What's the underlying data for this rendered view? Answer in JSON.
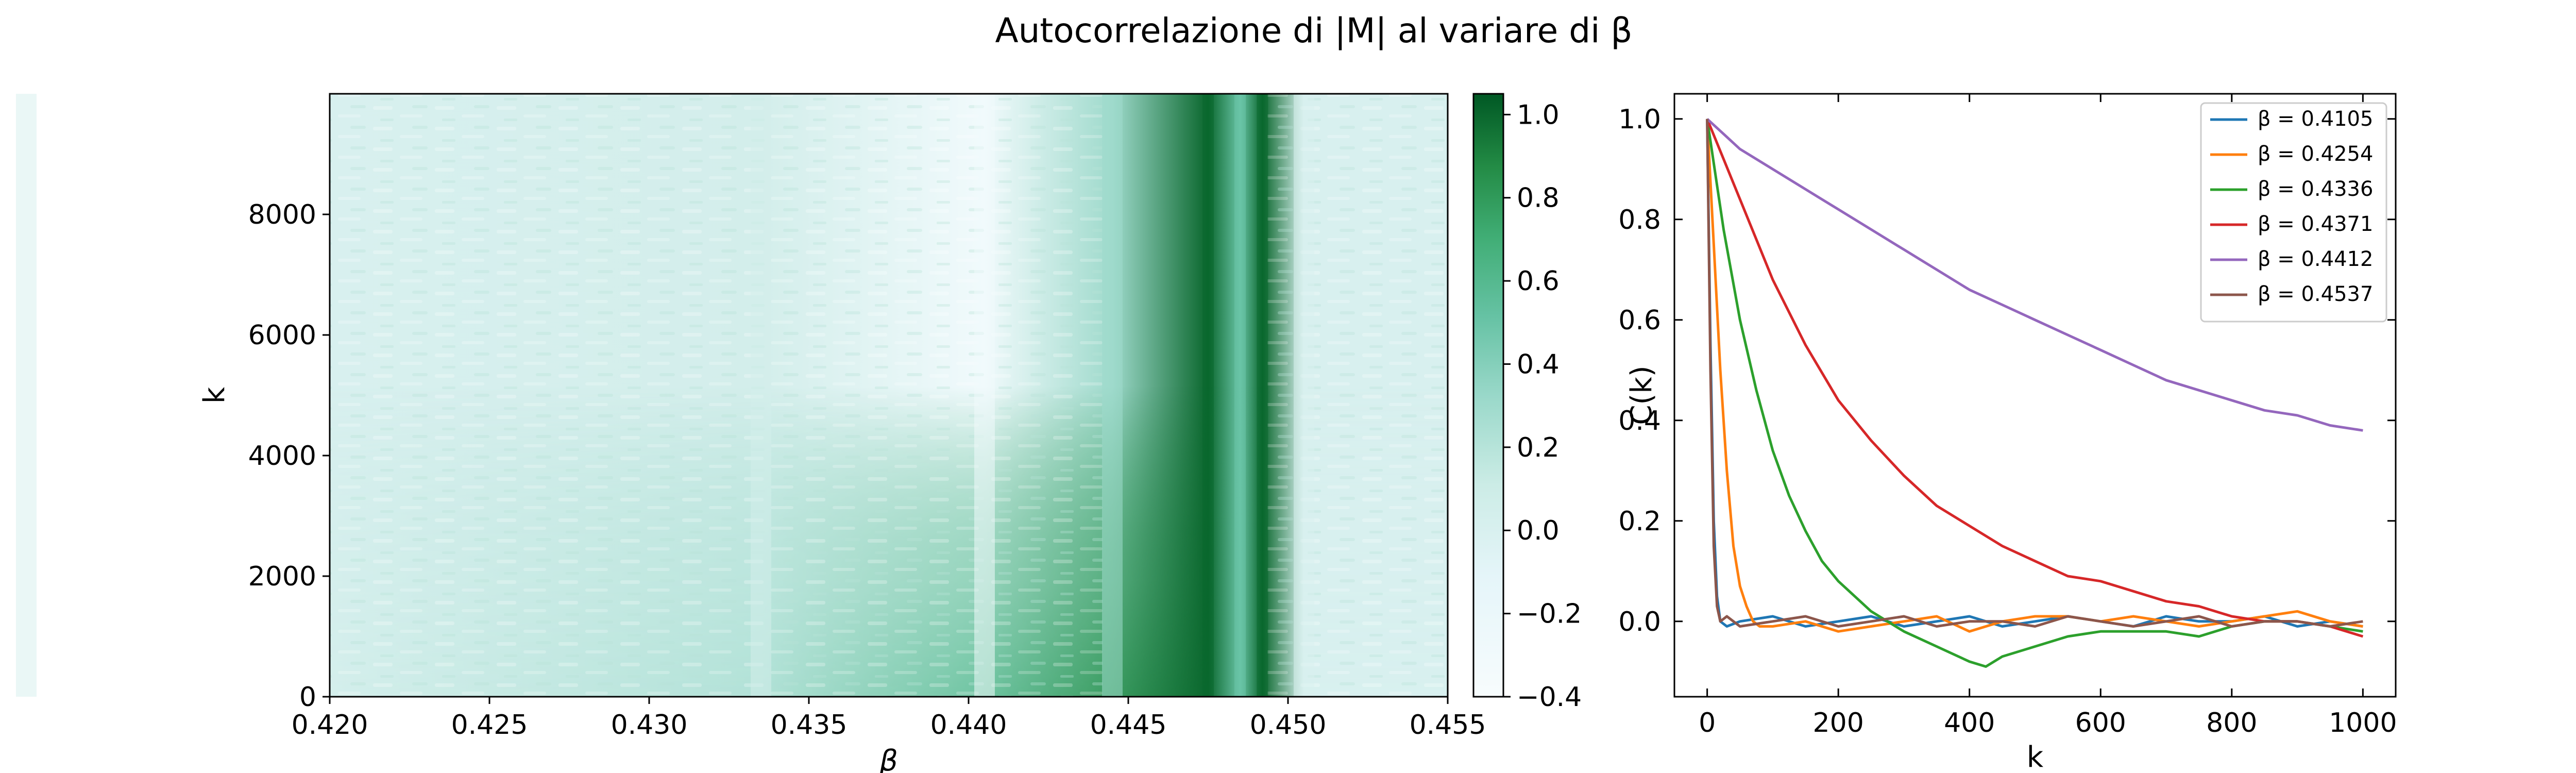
{
  "title": "Autocorrelazione di |M| al variare di β",
  "chart_data": [
    {
      "type": "heatmap",
      "xlabel": "β",
      "ylabel": "k",
      "xlim": [
        0.42,
        0.455
      ],
      "ylim": [
        0,
        10000
      ],
      "x_ticks": [
        0.42,
        0.425,
        0.43,
        0.435,
        0.44,
        0.445,
        0.45,
        0.455
      ],
      "x_tick_labels": [
        "0.420",
        "0.425",
        "0.430",
        "0.435",
        "0.440",
        "0.445",
        "0.450",
        "0.455"
      ],
      "y_ticks": [
        0,
        2000,
        4000,
        6000,
        8000
      ],
      "y_tick_labels": [
        "0",
        "2000",
        "4000",
        "6000",
        "8000"
      ],
      "colormap": "BuGn",
      "colorbar": {
        "range": [
          -0.4,
          1.05
        ],
        "ticks": [
          -0.4,
          -0.2,
          0.0,
          0.2,
          0.4,
          0.6,
          0.8,
          1.0
        ],
        "tick_labels": [
          "−0.4",
          "−0.2",
          "0.0",
          "0.2",
          "0.4",
          "0.6",
          "0.8",
          "1.0"
        ]
      },
      "features": [
        {
          "beta": 0.4105,
          "value_near_k0": 0.05,
          "value_far": 0.0
        },
        {
          "beta": 0.4335,
          "value_near_k0": 0.25,
          "value_far": 0.05
        },
        {
          "beta": 0.4405,
          "value_near_k0": 0.6,
          "value_far": -0.3
        },
        {
          "beta": 0.4445,
          "value_near_k0": 0.85,
          "value_far": 0.3
        },
        {
          "beta": 0.4475,
          "value_near_k0": 1.0,
          "value_far": 1.0
        },
        {
          "beta": 0.4485,
          "value_near_k0": 0.5,
          "value_far": 0.5
        },
        {
          "beta": 0.4492,
          "value_near_k0": 1.0,
          "value_far": 1.0
        },
        {
          "beta": 0.4505,
          "value_near_k0": 0.0,
          "value_far": 0.0
        }
      ]
    },
    {
      "type": "line",
      "xlabel": "k",
      "ylabel": "C(k)",
      "xlim": [
        -50,
        1050
      ],
      "ylim": [
        -0.15,
        1.05
      ],
      "x_ticks": [
        0,
        200,
        400,
        600,
        800,
        1000
      ],
      "x_tick_labels": [
        "0",
        "200",
        "400",
        "600",
        "800",
        "1000"
      ],
      "y_ticks": [
        0.0,
        0.2,
        0.4,
        0.6,
        0.8,
        1.0
      ],
      "y_tick_labels": [
        "0.0",
        "0.2",
        "0.4",
        "0.6",
        "0.8",
        "1.0"
      ],
      "legend_position": "upper right",
      "series": [
        {
          "name": "β = 0.4105",
          "color": "#1f77b4",
          "x": [
            0,
            5,
            10,
            15,
            20,
            30,
            50,
            100,
            150,
            200,
            250,
            300,
            350,
            400,
            450,
            500,
            550,
            600,
            650,
            700,
            750,
            800,
            850,
            900,
            950,
            1000
          ],
          "y": [
            1.0,
            0.55,
            0.2,
            0.05,
            0.0,
            -0.01,
            0.0,
            0.01,
            -0.01,
            0.0,
            0.01,
            -0.01,
            0.0,
            0.01,
            -0.01,
            0.0,
            0.01,
            0.0,
            -0.01,
            0.01,
            0.0,
            0.0,
            0.01,
            -0.01,
            0.0,
            -0.01
          ]
        },
        {
          "name": "β = 0.4254",
          "color": "#ff7f0e",
          "x": [
            0,
            10,
            20,
            30,
            40,
            50,
            60,
            70,
            80,
            100,
            150,
            200,
            250,
            300,
            350,
            400,
            450,
            500,
            550,
            600,
            650,
            700,
            750,
            800,
            850,
            900,
            950,
            1000
          ],
          "y": [
            1.0,
            0.75,
            0.5,
            0.3,
            0.15,
            0.07,
            0.03,
            0.0,
            -0.01,
            -0.01,
            0.0,
            -0.02,
            -0.01,
            0.0,
            0.01,
            -0.02,
            0.0,
            0.01,
            0.01,
            0.0,
            0.01,
            0.0,
            -0.01,
            0.0,
            0.01,
            0.02,
            0.0,
            -0.01
          ]
        },
        {
          "name": "β = 0.4336",
          "color": "#2ca02c",
          "x": [
            0,
            25,
            50,
            75,
            100,
            125,
            150,
            175,
            200,
            250,
            300,
            350,
            400,
            425,
            450,
            500,
            550,
            600,
            650,
            700,
            750,
            800,
            850,
            900,
            950,
            1000
          ],
          "y": [
            1.0,
            0.78,
            0.6,
            0.46,
            0.34,
            0.25,
            0.18,
            0.12,
            0.08,
            0.02,
            -0.02,
            -0.05,
            -0.08,
            -0.09,
            -0.07,
            -0.05,
            -0.03,
            -0.02,
            -0.02,
            -0.02,
            -0.03,
            -0.01,
            0.0,
            0.0,
            -0.01,
            -0.02
          ]
        },
        {
          "name": "β = 0.4371",
          "color": "#d62728",
          "x": [
            0,
            25,
            50,
            75,
            100,
            150,
            200,
            250,
            300,
            350,
            400,
            450,
            500,
            550,
            600,
            650,
            700,
            750,
            800,
            850,
            900,
            950,
            1000
          ],
          "y": [
            1.0,
            0.92,
            0.84,
            0.76,
            0.68,
            0.55,
            0.44,
            0.36,
            0.29,
            0.23,
            0.19,
            0.15,
            0.12,
            0.09,
            0.08,
            0.06,
            0.04,
            0.03,
            0.01,
            0.0,
            0.0,
            -0.01,
            -0.03
          ]
        },
        {
          "name": "β = 0.4412",
          "color": "#9467bd",
          "x": [
            0,
            25,
            50,
            100,
            150,
            200,
            250,
            300,
            350,
            400,
            450,
            500,
            550,
            600,
            650,
            700,
            750,
            800,
            850,
            900,
            950,
            1000
          ],
          "y": [
            1.0,
            0.97,
            0.94,
            0.9,
            0.86,
            0.82,
            0.78,
            0.74,
            0.7,
            0.66,
            0.63,
            0.6,
            0.57,
            0.54,
            0.51,
            0.48,
            0.46,
            0.44,
            0.42,
            0.41,
            0.39,
            0.38
          ]
        },
        {
          "name": "β = 0.4537",
          "color": "#8c564b",
          "x": [
            0,
            5,
            10,
            15,
            20,
            30,
            50,
            100,
            150,
            200,
            250,
            300,
            350,
            400,
            450,
            500,
            550,
            600,
            650,
            700,
            750,
            800,
            850,
            900,
            950,
            1000
          ],
          "y": [
            1.0,
            0.5,
            0.15,
            0.03,
            0.0,
            0.01,
            -0.01,
            0.0,
            0.01,
            -0.01,
            0.0,
            0.01,
            -0.01,
            0.0,
            0.0,
            -0.01,
            0.01,
            0.0,
            -0.01,
            0.0,
            0.01,
            -0.01,
            0.0,
            0.0,
            -0.01,
            0.0
          ]
        }
      ]
    }
  ]
}
